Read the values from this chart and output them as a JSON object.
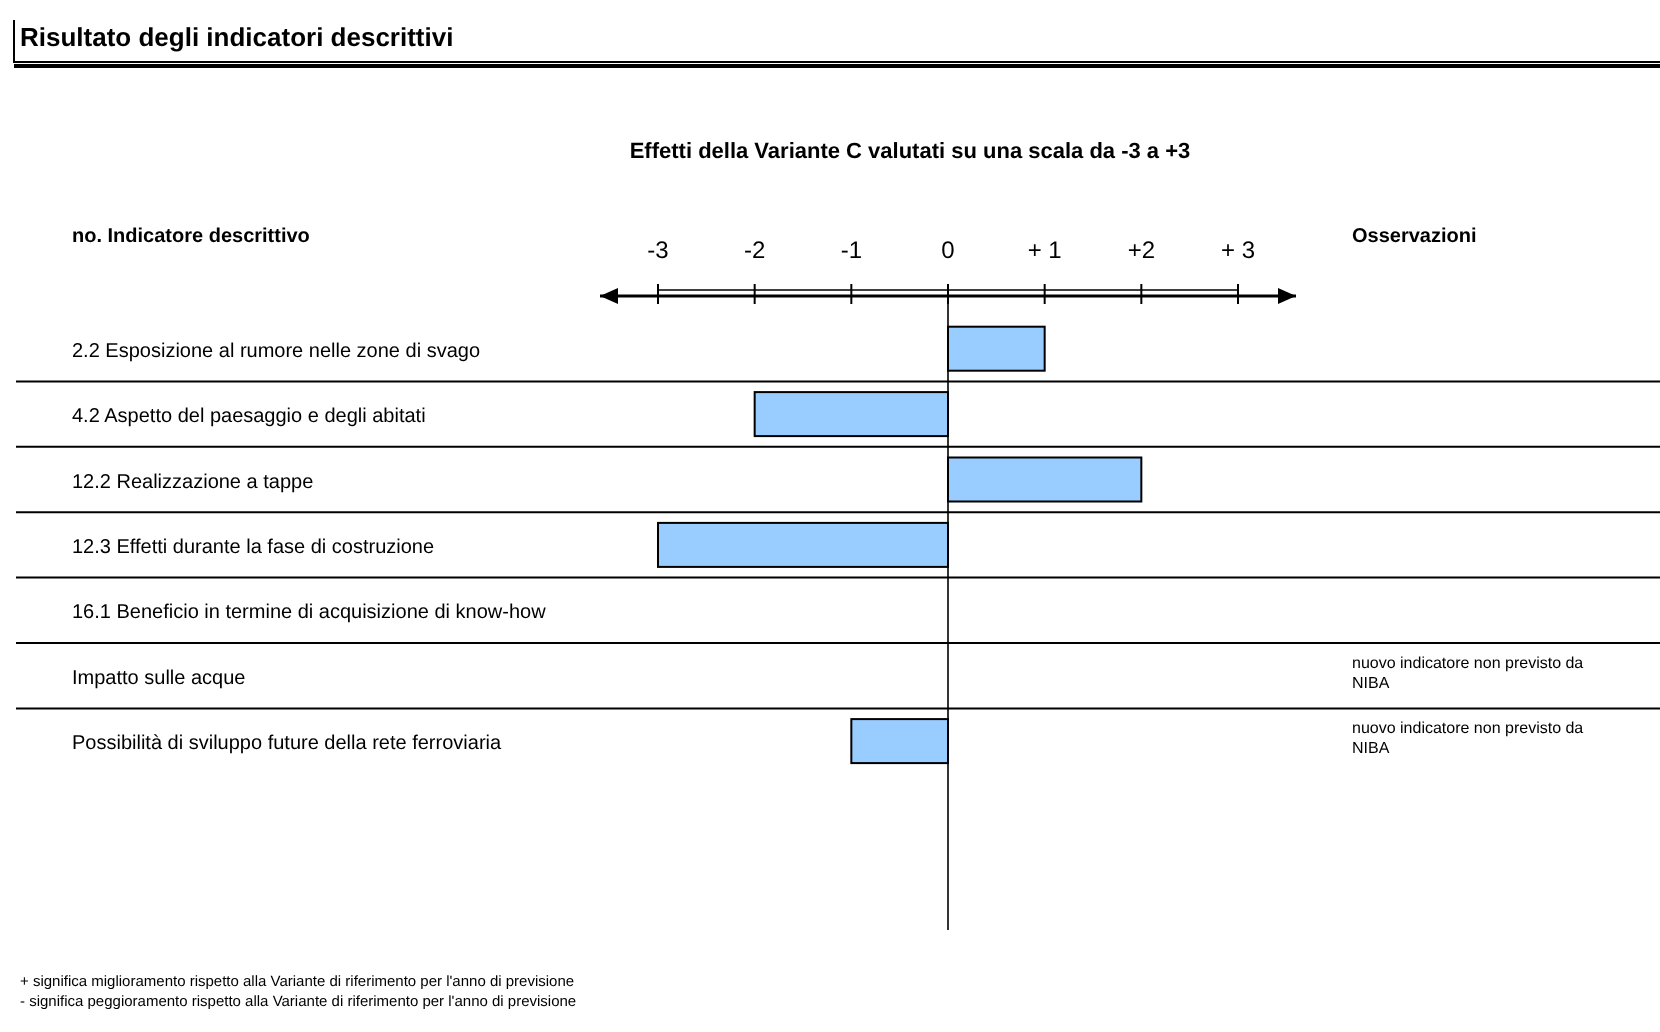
{
  "chart_data": {
    "type": "bar",
    "orientation": "horizontal",
    "title": "Risultato degli indicatori descrittivi",
    "subtitle": "Effetti della Variante C valutati su una scala da -3 a +3",
    "categories": [
      "2.2 Esposizione al rumore nelle zone di svago",
      "4.2 Aspetto del paesaggio e degli abitati",
      "12.2 Realizzazione a tappe",
      "12.3 Effetti durante la fase di costruzione",
      "16.1 Beneficio in termine di acquisizione di know-how",
      "Impatto sulle acque",
      "Possibilità di sviluppo future della rete ferroviaria"
    ],
    "values": [
      1,
      -2,
      2,
      -3,
      0,
      0,
      -1
    ],
    "color": "#99ccff",
    "xlim": [
      -3.6,
      3.6
    ],
    "xticks": [
      -3,
      -2,
      -1,
      0,
      {
        "value": 1,
        "label": "+ 1"
      },
      {
        "value": 2,
        "label": "+2"
      },
      {
        "value": 3,
        "label": "+ 3"
      }
    ],
    "annotations": [
      "no. Indicatore descrittivo",
      "Osservazioni",
      "nuovo indicatore non previsto da NIBA",
      "nuovo indicatore non previsto da NIBA",
      "+ significa miglioramento rispetto alla Variante di riferimento per l'anno di previsione",
      "-  significa peggioramento rispetto alla Variante di riferimento per l'anno di previsione"
    ]
  }
}
